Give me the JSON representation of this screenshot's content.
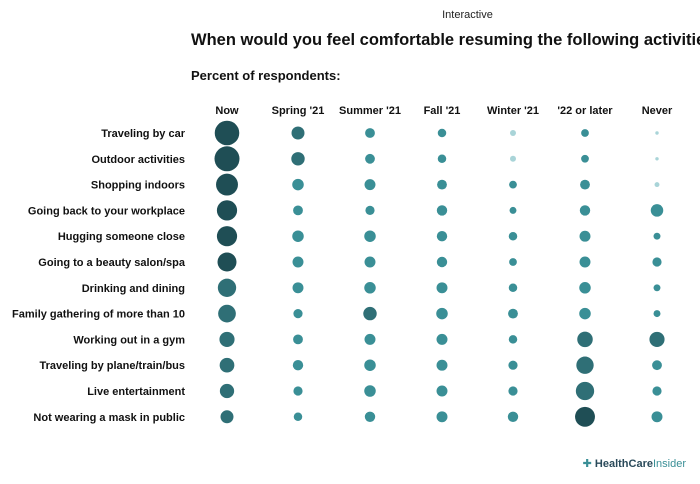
{
  "header": {
    "tag": "Interactive",
    "title": "When would you feel comfortable resuming the following activities?",
    "subtitle": "Percent of respondents:"
  },
  "brand": {
    "name_bold": "HealthCare",
    "name_light": "Insider",
    "icon": "plus-cross-icon"
  },
  "colors": {
    "dark": "#1f4e55",
    "mid": "#3a8f96",
    "light": "#a9d4d8"
  },
  "chart_data": {
    "type": "dot-matrix",
    "columns": [
      "Now",
      "Spring '21",
      "Summer '21",
      "Fall '21",
      "Winter '21",
      "'22 or later",
      "Never"
    ],
    "rows": [
      "Traveling by car",
      "Outdoor activities",
      "Shopping indoors",
      "Going back to your workplace",
      "Hugging someone close",
      "Going to a beauty salon/spa",
      "Drinking and dining",
      "Family gathering of more than 10",
      "Working out in a gym",
      "Traveling by plane/train/bus",
      "Live entertainment",
      "Not wearing a mask in public"
    ],
    "values": [
      [
        50,
        14,
        8,
        6,
        3,
        5,
        1
      ],
      [
        52,
        15,
        8,
        6,
        3,
        5,
        1
      ],
      [
        40,
        11,
        10,
        8,
        5,
        8,
        2
      ],
      [
        34,
        8,
        7,
        9,
        4,
        9,
        13
      ],
      [
        34,
        11,
        11,
        9,
        6,
        10,
        4
      ],
      [
        30,
        10,
        10,
        9,
        5,
        10,
        7
      ],
      [
        28,
        10,
        11,
        10,
        6,
        11,
        4
      ],
      [
        26,
        7,
        15,
        11,
        8,
        11,
        4
      ],
      [
        19,
        8,
        10,
        10,
        6,
        20,
        19
      ],
      [
        18,
        9,
        11,
        10,
        7,
        25,
        8
      ],
      [
        17,
        7,
        11,
        10,
        7,
        28,
        7
      ],
      [
        14,
        6,
        9,
        10,
        9,
        33,
        10
      ]
    ],
    "unit": "percent of respondents"
  }
}
